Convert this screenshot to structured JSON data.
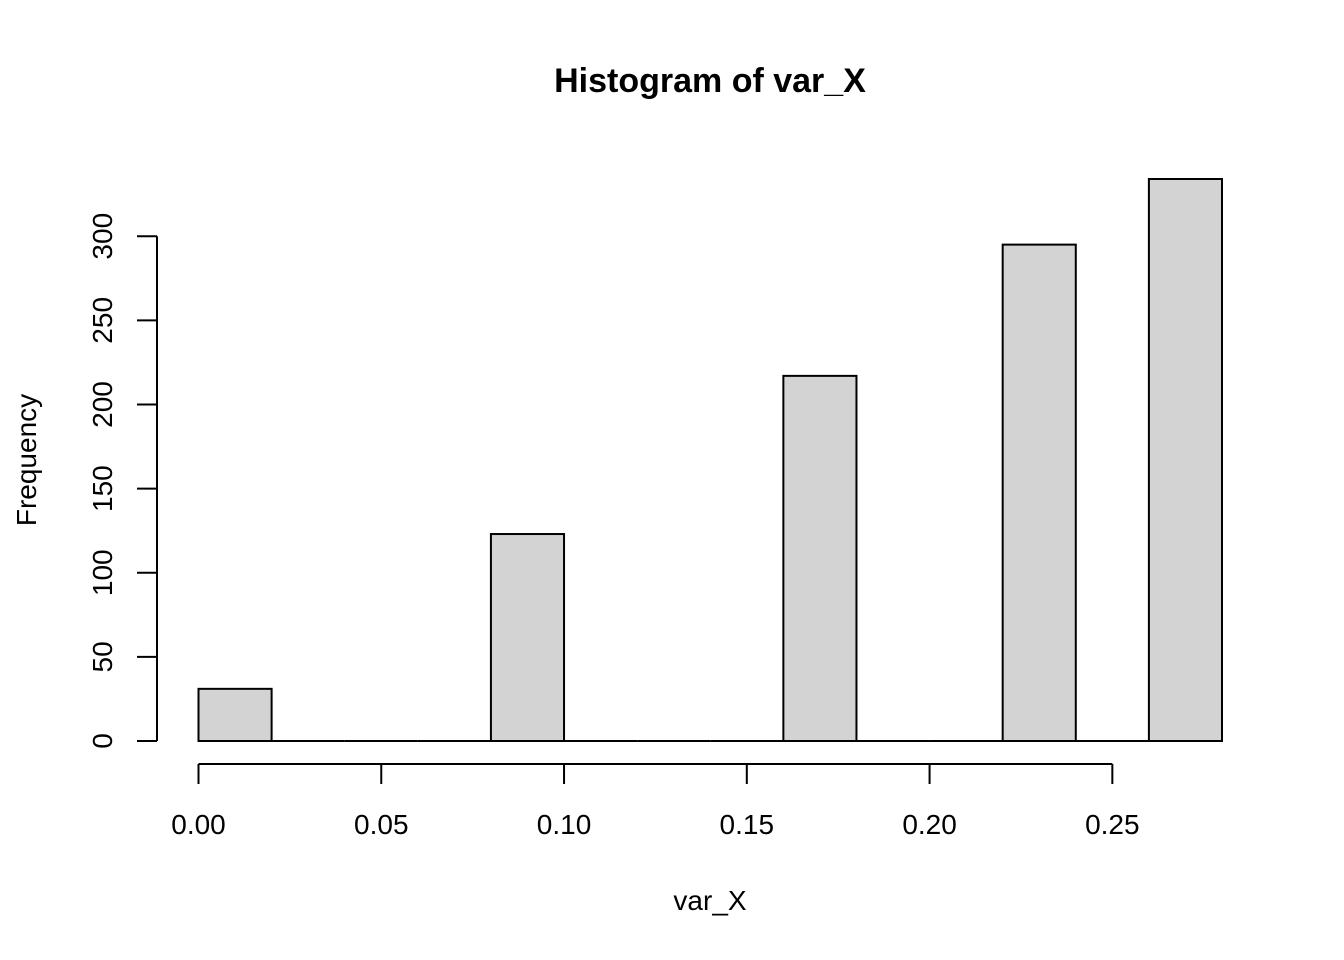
{
  "chart_data": {
    "type": "bar",
    "title": "Histogram of var_X",
    "xlabel": "var_X",
    "ylabel": "Frequency",
    "bins": [
      {
        "from": 0.0,
        "to": 0.02,
        "count": 31
      },
      {
        "from": 0.02,
        "to": 0.04,
        "count": 0
      },
      {
        "from": 0.04,
        "to": 0.06,
        "count": 0
      },
      {
        "from": 0.06,
        "to": 0.08,
        "count": 0
      },
      {
        "from": 0.08,
        "to": 0.1,
        "count": 123
      },
      {
        "from": 0.1,
        "to": 0.12,
        "count": 0
      },
      {
        "from": 0.12,
        "to": 0.14,
        "count": 0
      },
      {
        "from": 0.14,
        "to": 0.16,
        "count": 0
      },
      {
        "from": 0.16,
        "to": 0.18,
        "count": 217
      },
      {
        "from": 0.18,
        "to": 0.2,
        "count": 0
      },
      {
        "from": 0.2,
        "to": 0.22,
        "count": 0
      },
      {
        "from": 0.22,
        "to": 0.24,
        "count": 295
      },
      {
        "from": 0.24,
        "to": 0.26,
        "count": 0
      },
      {
        "from": 0.26,
        "to": 0.28,
        "count": 334
      }
    ],
    "xlim": [
      0.0,
      0.28
    ],
    "ylim": [
      0,
      334
    ],
    "x_ticks": [
      0.0,
      0.05,
      0.1,
      0.15,
      0.2,
      0.25
    ],
    "x_tick_labels": [
      "0.00",
      "0.05",
      "0.10",
      "0.15",
      "0.20",
      "0.25"
    ],
    "y_ticks": [
      0,
      50,
      100,
      150,
      200,
      250,
      300
    ],
    "y_tick_labels": [
      "0",
      "50",
      "100",
      "150",
      "200",
      "250",
      "300"
    ],
    "grid": false,
    "bar_fill": "#d3d3d3",
    "bar_stroke": "#000000"
  }
}
